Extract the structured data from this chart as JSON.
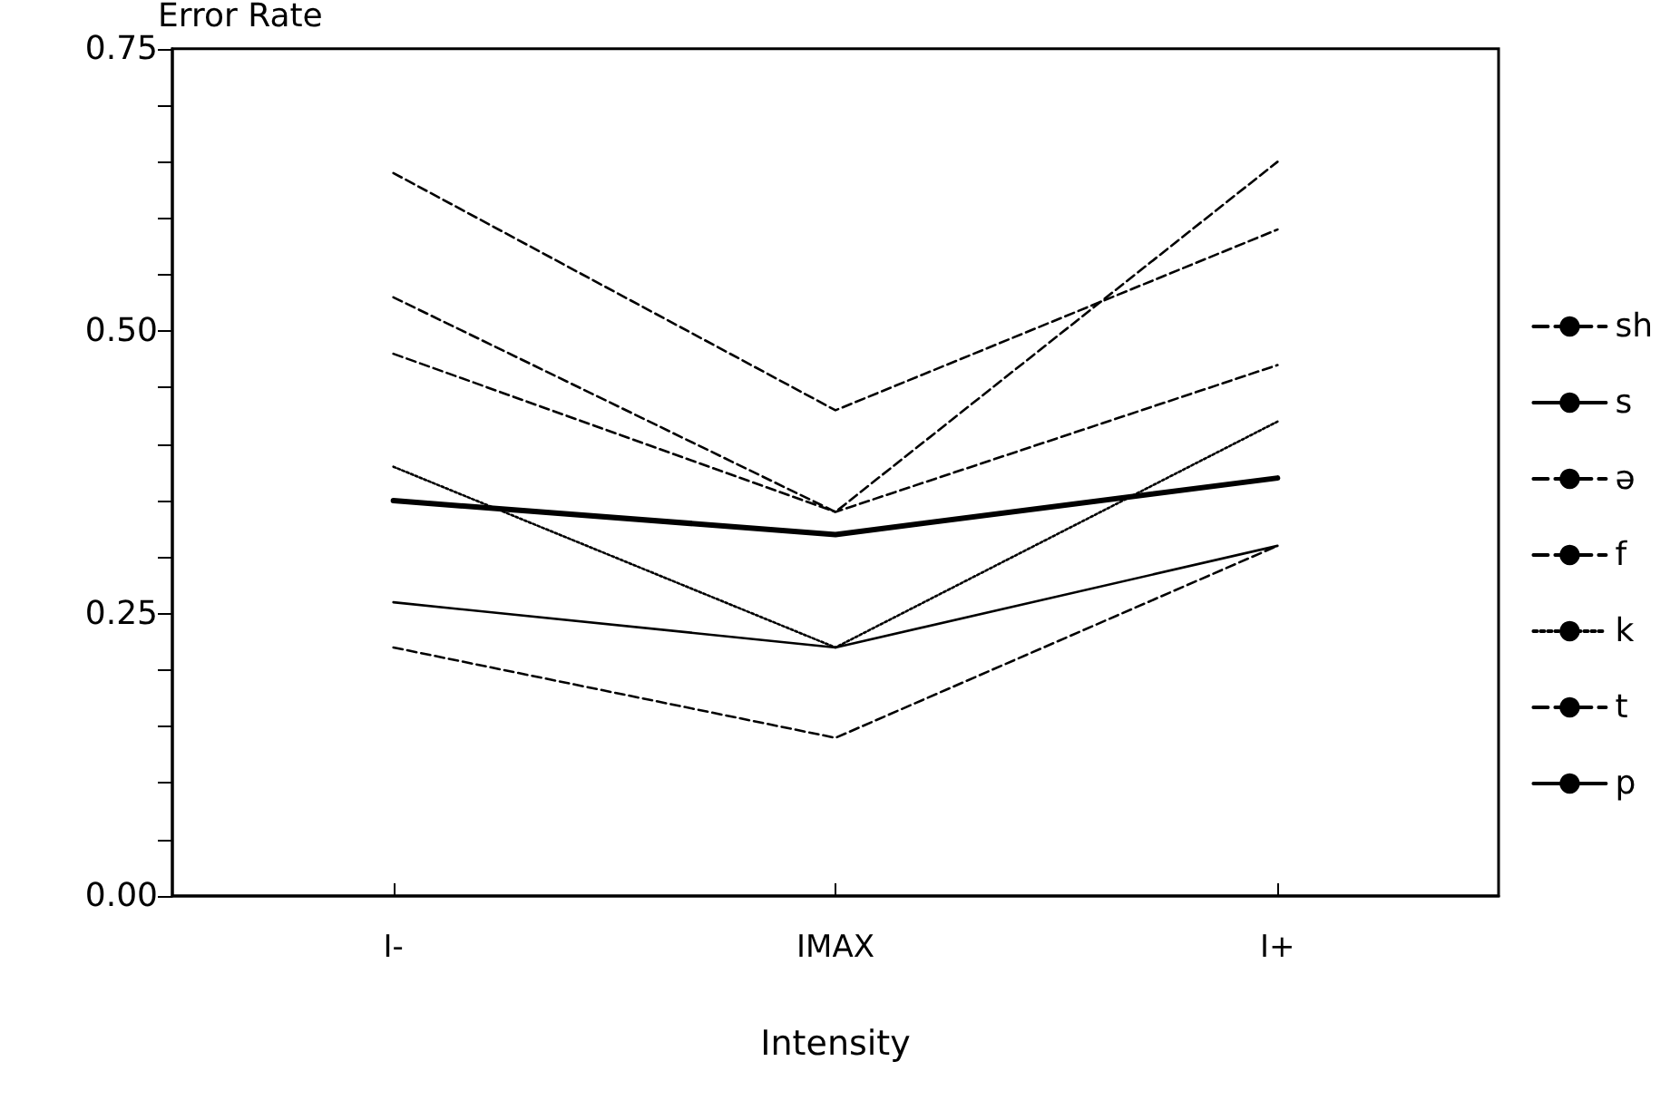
{
  "chart_data": {
    "type": "line",
    "ylabel": "Error Rate",
    "xlabel": "Intensity",
    "categories": [
      "I-",
      "IMAX",
      "I+"
    ],
    "ylim": [
      0,
      0.75
    ],
    "yticks": [
      {
        "value": 0,
        "label": "0.00"
      },
      {
        "value": 0.05,
        "label": null
      },
      {
        "value": 0.1,
        "label": null
      },
      {
        "value": 0.15,
        "label": null
      },
      {
        "value": 0.2,
        "label": null
      },
      {
        "value": 0.25,
        "label": "0.25"
      },
      {
        "value": 0.3,
        "label": null
      },
      {
        "value": 0.35,
        "label": null
      },
      {
        "value": 0.4,
        "label": null
      },
      {
        "value": 0.45,
        "label": null
      },
      {
        "value": 0.5,
        "label": "0.50"
      },
      {
        "value": 0.55,
        "label": null
      },
      {
        "value": 0.6,
        "label": null
      },
      {
        "value": 0.65,
        "label": null
      },
      {
        "value": 0.7,
        "label": null
      },
      {
        "value": 0.75,
        "label": "0.75"
      }
    ],
    "grid": false,
    "legend": "right",
    "marker": "none",
    "series": [
      {
        "name": "sh",
        "color": "#000000",
        "line_style": "dashed",
        "values": [
          0.22,
          0.14,
          0.31
        ]
      },
      {
        "name": "s",
        "color": "#000000",
        "line_style": "solid",
        "values": [
          0.26,
          0.22,
          0.31
        ]
      },
      {
        "name": "ə",
        "color": "#000000",
        "line_style": "dashed",
        "values": [
          0.64,
          0.43,
          0.59
        ]
      },
      {
        "name": "f",
        "color": "#000000",
        "line_style": "dashed",
        "values": [
          0.48,
          0.34,
          0.47
        ]
      },
      {
        "name": "k",
        "color": "#000000",
        "line_style": "dotted",
        "values": [
          0.38,
          0.22,
          0.42
        ]
      },
      {
        "name": "t",
        "color": "#000000",
        "line_style": "dashed",
        "values": [
          0.53,
          0.34,
          0.65
        ]
      },
      {
        "name": "p",
        "color": "#000000",
        "line_style": "solid",
        "values": [
          0.35,
          0.32,
          0.37
        ]
      }
    ]
  }
}
